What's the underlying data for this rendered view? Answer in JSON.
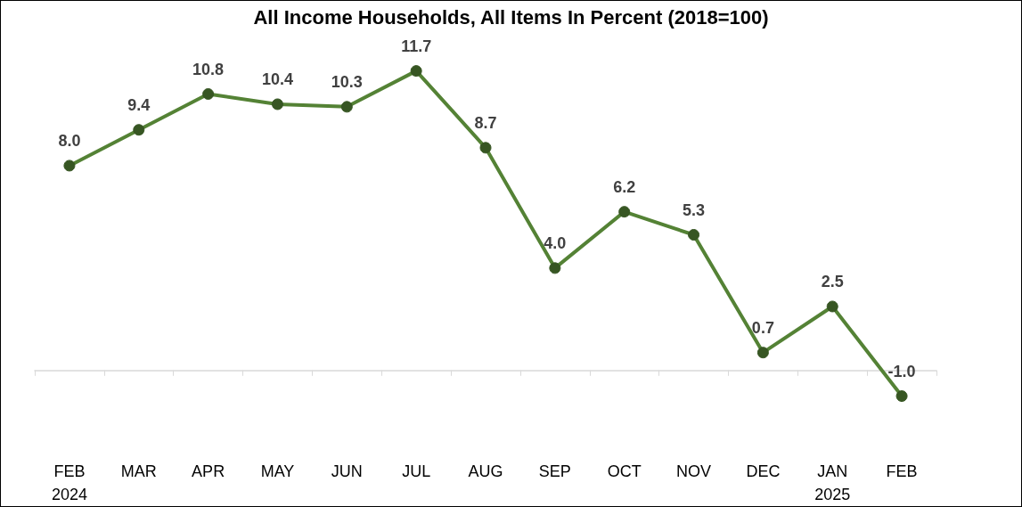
{
  "chart_data": {
    "type": "line",
    "title": "All Income Households, All Items In Percent (2018=100)",
    "categories": [
      "FEB\n2024",
      "MAR",
      "APR",
      "MAY",
      "JUN",
      "JUL",
      "AUG",
      "SEP",
      "OCT",
      "NOV",
      "DEC",
      "JAN\n2025",
      "FEB"
    ],
    "series": [
      {
        "color": "#548235",
        "values": [
          8.0,
          9.4,
          10.8,
          10.4,
          10.3,
          11.7,
          8.7,
          4.0,
          6.2,
          5.3,
          0.7,
          2.5,
          -1.0
        ],
        "value_labels": [
          "8.0",
          "9.4",
          "10.8",
          "10.4",
          "10.3",
          "11.7",
          "8.7",
          "4.0",
          "6.2",
          "5.3",
          "0.7",
          "2.5",
          "-1.0"
        ]
      }
    ],
    "marker": "circle",
    "grid": false
  }
}
